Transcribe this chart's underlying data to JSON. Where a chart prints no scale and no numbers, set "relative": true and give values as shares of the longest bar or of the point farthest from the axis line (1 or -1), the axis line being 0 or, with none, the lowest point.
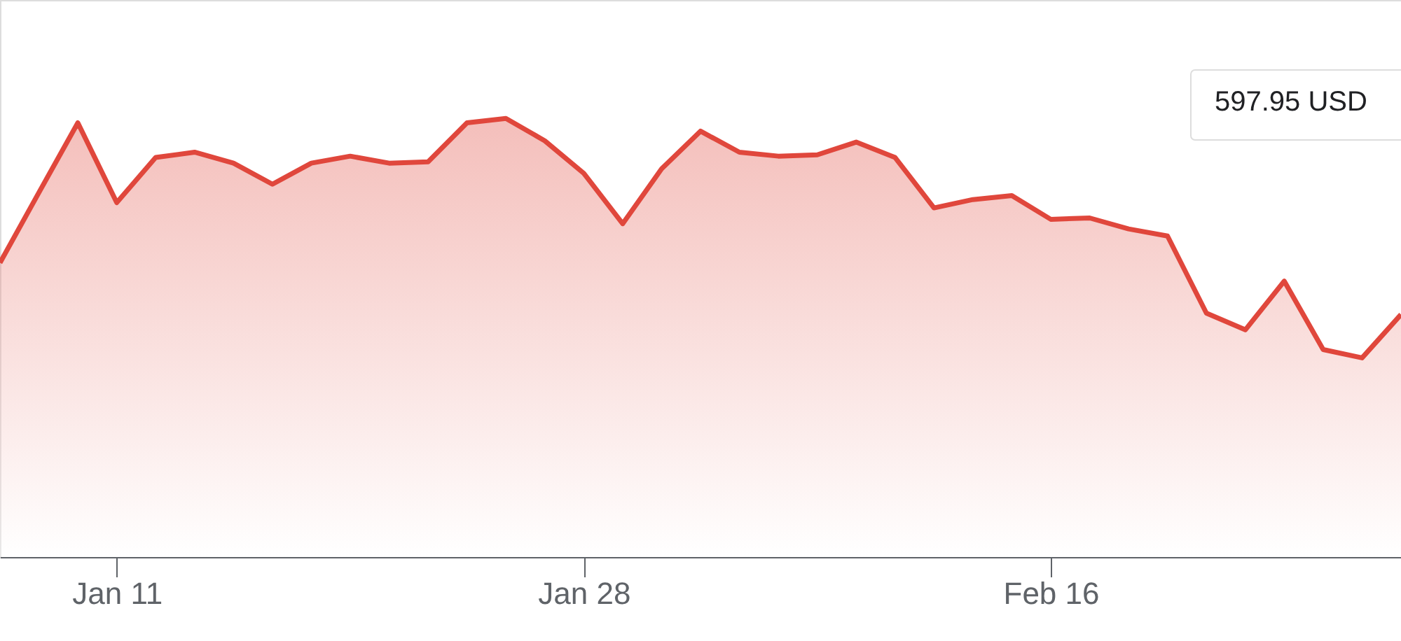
{
  "chart_data": {
    "type": "area",
    "relative": true,
    "categories": [
      null,
      null,
      null,
      "Jan 11",
      null,
      null,
      null,
      null,
      null,
      null,
      null,
      null,
      null,
      null,
      null,
      "Jan 28",
      null,
      null,
      null,
      null,
      null,
      null,
      null,
      null,
      null,
      null,
      null,
      "Feb 16",
      null,
      null,
      null,
      null,
      null,
      null,
      null,
      null,
      null
    ],
    "series": [
      {
        "color": "#e0473c",
        "values": [
          0.671,
          0.831,
          0.99,
          0.808,
          0.911,
          0.923,
          0.898,
          0.85,
          0.898,
          0.914,
          0.898,
          0.901,
          0.99,
          1.0,
          0.949,
          0.875,
          0.76,
          0.885,
          0.971,
          0.923,
          0.914,
          0.917,
          0.946,
          0.911,
          0.796,
          0.815,
          0.824,
          0.77,
          0.773,
          0.748,
          0.732,
          0.556,
          0.518,
          0.629,
          0.473,
          0.454,
          0.553
        ]
      }
    ],
    "annotations": [
      "597.95 USD"
    ]
  }
}
